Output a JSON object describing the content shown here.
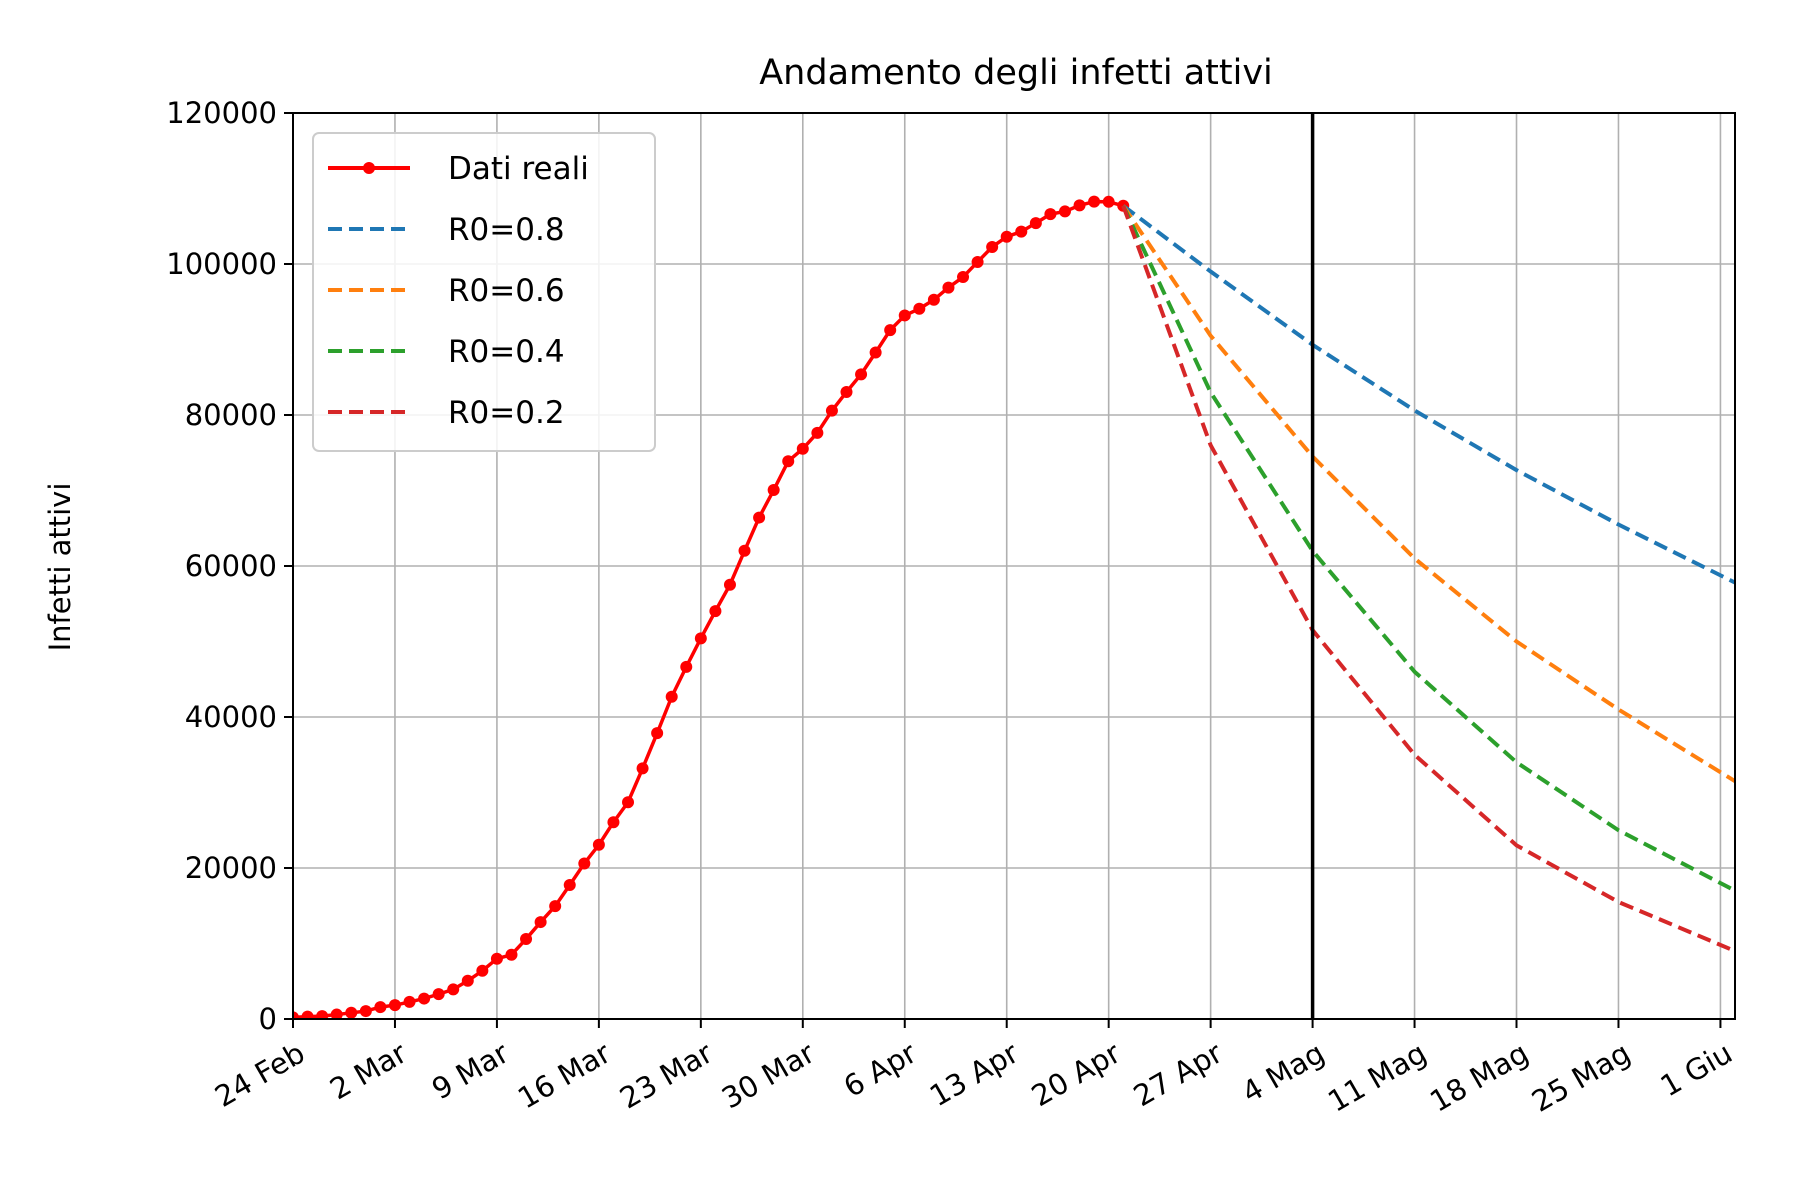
{
  "chart_data": {
    "type": "line",
    "title": "Andamento degli infetti attivi",
    "xlabel": "",
    "ylabel": "Infetti attivi",
    "x_axis": {
      "start_date": "24 Feb",
      "range_days": [
        0,
        99
      ],
      "ticks": [
        {
          "day": 0,
          "label": "24 Feb"
        },
        {
          "day": 7,
          "label": "2 Mar"
        },
        {
          "day": 14,
          "label": "9 Mar"
        },
        {
          "day": 21,
          "label": "16 Mar"
        },
        {
          "day": 28,
          "label": "23 Mar"
        },
        {
          "day": 35,
          "label": "30 Mar"
        },
        {
          "day": 42,
          "label": "6 Apr"
        },
        {
          "day": 49,
          "label": "13 Apr"
        },
        {
          "day": 56,
          "label": "20 Apr"
        },
        {
          "day": 63,
          "label": "27 Apr"
        },
        {
          "day": 70,
          "label": "4 Mag"
        },
        {
          "day": 77,
          "label": "11 Mag"
        },
        {
          "day": 84,
          "label": "18 Mag"
        },
        {
          "day": 91,
          "label": "25 Mag"
        },
        {
          "day": 98,
          "label": "1 Giu"
        }
      ]
    },
    "ylim": [
      0,
      120000
    ],
    "y_ticks": [
      "0",
      "20000",
      "40000",
      "60000",
      "80000",
      "100000",
      "120000"
    ],
    "y_tick_values": [
      0,
      20000,
      40000,
      60000,
      80000,
      100000,
      120000
    ],
    "grid": true,
    "legend_position": "top-left",
    "vertical_line": {
      "day": 70,
      "color": "#000000"
    },
    "series": [
      {
        "name": "Dati reali",
        "color": "#ff0000",
        "style": "solid-markers",
        "x": [
          0,
          1,
          2,
          3,
          4,
          5,
          6,
          7,
          8,
          9,
          10,
          11,
          12,
          13,
          14,
          15,
          16,
          17,
          18,
          19,
          20,
          21,
          22,
          23,
          24,
          25,
          26,
          27,
          28,
          29,
          30,
          31,
          32,
          33,
          34,
          35,
          36,
          37,
          38,
          39,
          40,
          41,
          42,
          43,
          44,
          45,
          46,
          47,
          48,
          49,
          50,
          51,
          52,
          53,
          54,
          55,
          56,
          57
        ],
        "y": [
          221,
          311,
          385,
          588,
          821,
          1049,
          1577,
          1835,
          2263,
          2706,
          3296,
          3916,
          5061,
          6387,
          7985,
          8514,
          10590,
          12839,
          14955,
          17750,
          20603,
          23073,
          26062,
          28710,
          33190,
          37860,
          42681,
          46638,
          50418,
          54030,
          57521,
          62013,
          66414,
          70065,
          73880,
          75528,
          77635,
          80572,
          83049,
          85388,
          88274,
          91246,
          93187,
          94067,
          95262,
          96877,
          98273,
          100269,
          102253,
          103616,
          104291,
          105418,
          106607,
          106962,
          107771,
          108257,
          108237,
          107709
        ]
      },
      {
        "name": "R0=0.8",
        "color": "#1f77b4",
        "style": "dashed",
        "x": [
          57,
          63,
          70,
          77,
          84,
          91,
          99
        ],
        "y": [
          107709,
          99000,
          89300,
          80600,
          72700,
          65500,
          57800
        ]
      },
      {
        "name": "R0=0.6",
        "color": "#ff7f0e",
        "style": "dashed",
        "x": [
          57,
          63,
          70,
          77,
          84,
          91,
          99
        ],
        "y": [
          107709,
          90500,
          74500,
          61000,
          50000,
          41000,
          31500
        ]
      },
      {
        "name": "R0=0.4",
        "color": "#2ca02c",
        "style": "dashed",
        "x": [
          57,
          63,
          70,
          77,
          84,
          91,
          99
        ],
        "y": [
          107709,
          83000,
          62000,
          46000,
          34000,
          25000,
          17000
        ]
      },
      {
        "name": "R0=0.2",
        "color": "#d62728",
        "style": "dashed",
        "x": [
          57,
          63,
          70,
          77,
          84,
          91,
          99
        ],
        "y": [
          107709,
          76000,
          51500,
          35000,
          23000,
          15500,
          9000
        ]
      }
    ]
  }
}
